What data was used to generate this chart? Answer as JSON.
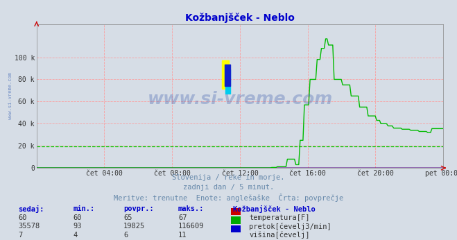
{
  "title": "Kožbanjšček - Neblo",
  "bg_color": "#d6dde6",
  "title_color": "#0000cc",
  "grid_color_red": "#ff9999",
  "grid_color_green": "#00cc00",
  "x_ticks_labels": [
    "čet 04:00",
    "čet 08:00",
    "čet 12:00",
    "čet 16:00",
    "čet 20:00",
    "pet 00:00"
  ],
  "x_ticks_positions": [
    4,
    8,
    12,
    16,
    20,
    24
  ],
  "y_max": 130000,
  "y_min": 0,
  "y_ticks": [
    0,
    20000,
    40000,
    60000,
    80000,
    100000
  ],
  "y_labels": [
    "0",
    "20 k",
    "40 k",
    "60 k",
    "80 k",
    "100 k"
  ],
  "subtitle_lines": [
    "Slovenija / reke in morje.",
    "zadnji dan / 5 minut.",
    "Meritve: trenutne  Enote: anglešaške  Črta: povprečje"
  ],
  "subtitle_color": "#6688aa",
  "table_header_color": "#0000cc",
  "table_header": [
    "sedaj:",
    "min.:",
    "povpr.:",
    "maks.:",
    "Kožbanjšček - Neblo"
  ],
  "table_data": [
    [
      60,
      60,
      65,
      67,
      "temperatura[F]",
      "#cc0000"
    ],
    [
      35578,
      93,
      19825,
      116609,
      "pretok[čevelj3/min]",
      "#00aa00"
    ],
    [
      7,
      4,
      6,
      11,
      "višina[čevelj]",
      "#0000cc"
    ]
  ],
  "watermark": "www.si-vreme.com",
  "watermark_color": "#3355aa",
  "temp_color": "#cc0000",
  "flow_color": "#00bb00",
  "height_color": "#0000cc",
  "flow_avg": 19825,
  "n_points": 288
}
